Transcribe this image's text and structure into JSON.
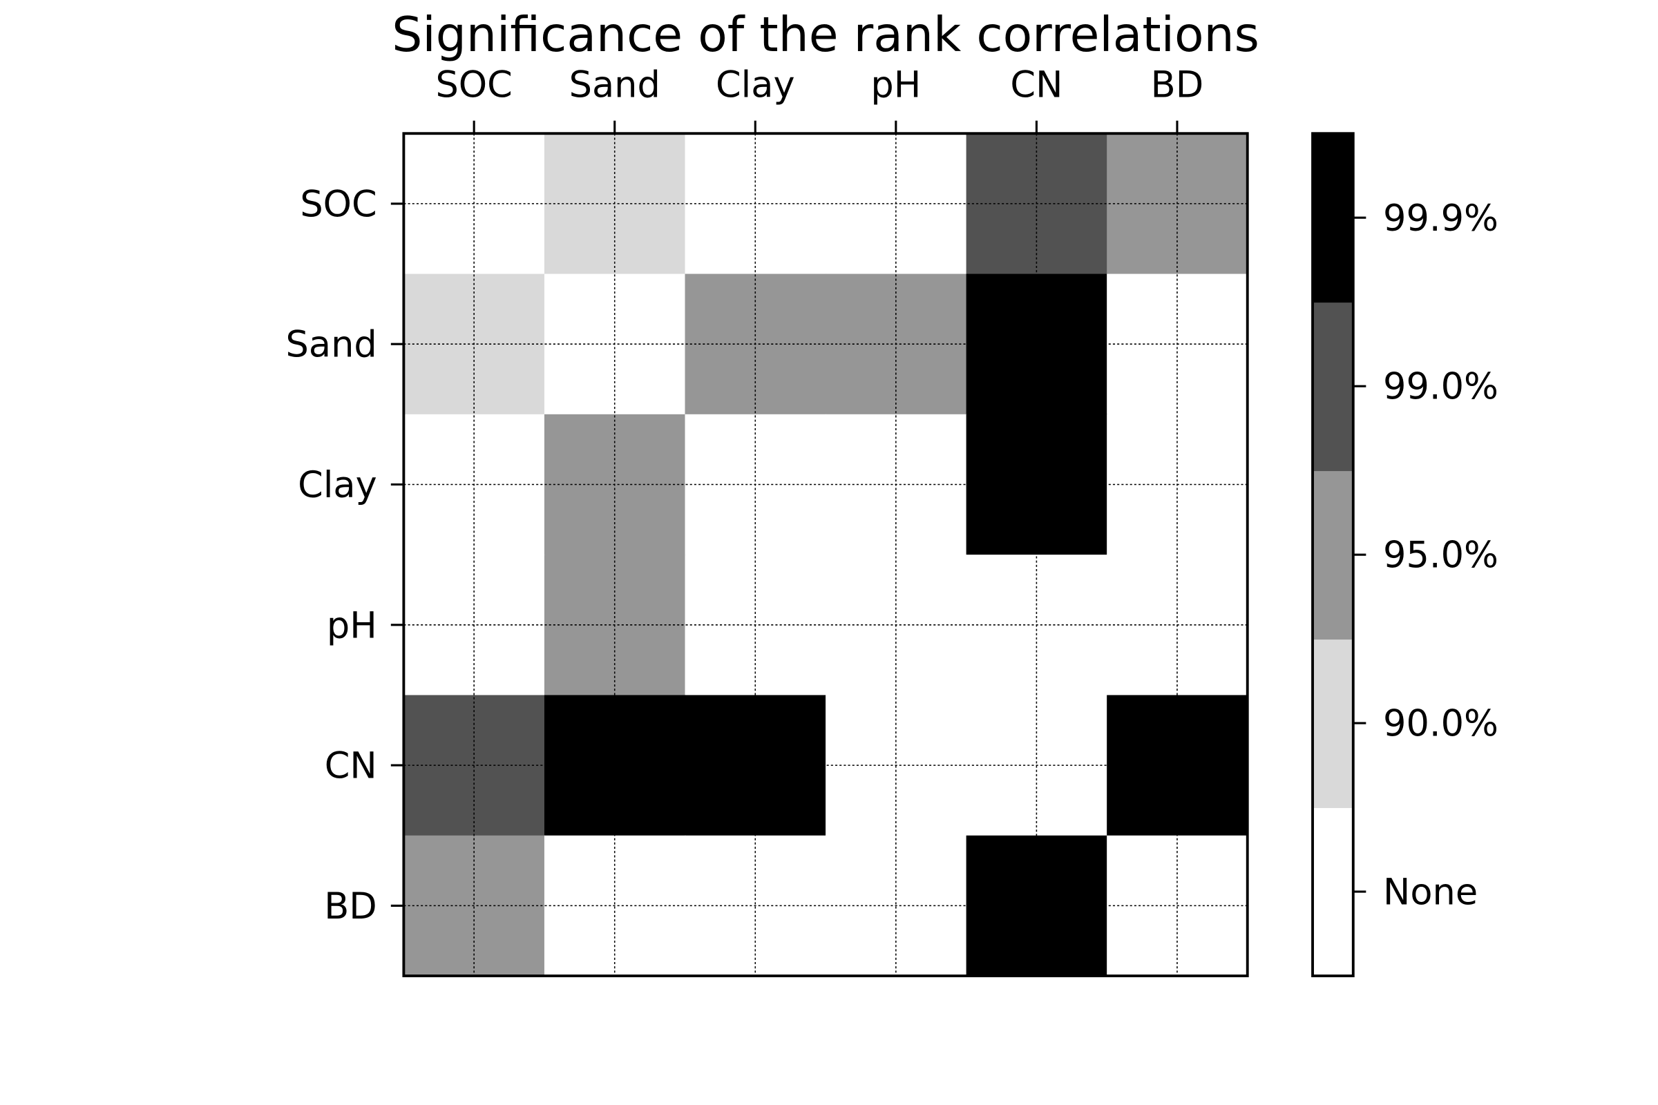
{
  "chart_data": {
    "type": "heatmap",
    "title": "Significance of the rank correlations",
    "x_categories": [
      "SOC",
      "Sand",
      "Clay",
      "pH",
      "CN",
      "BD"
    ],
    "y_categories": [
      "SOC",
      "Sand",
      "Clay",
      "pH",
      "CN",
      "BD"
    ],
    "grid": true,
    "colorbar": {
      "position": "right",
      "levels": [
        "None",
        "90.0%",
        "95.0%",
        "99.0%",
        "99.9%"
      ],
      "colors": [
        "#ffffff",
        "#d9d9d9",
        "#969696",
        "#525252",
        "#000000"
      ]
    },
    "values": [
      [
        "None",
        "90.0%",
        "None",
        "None",
        "99.0%",
        "95.0%"
      ],
      [
        "90.0%",
        "None",
        "95.0%",
        "95.0%",
        "99.9%",
        "None"
      ],
      [
        "None",
        "95.0%",
        "None",
        "None",
        "99.9%",
        "None"
      ],
      [
        "None",
        "95.0%",
        "None",
        "None",
        "None",
        "None"
      ],
      [
        "99.0%",
        "99.9%",
        "99.9%",
        "None",
        "None",
        "99.9%"
      ],
      [
        "95.0%",
        "None",
        "None",
        "None",
        "99.9%",
        "None"
      ]
    ]
  }
}
